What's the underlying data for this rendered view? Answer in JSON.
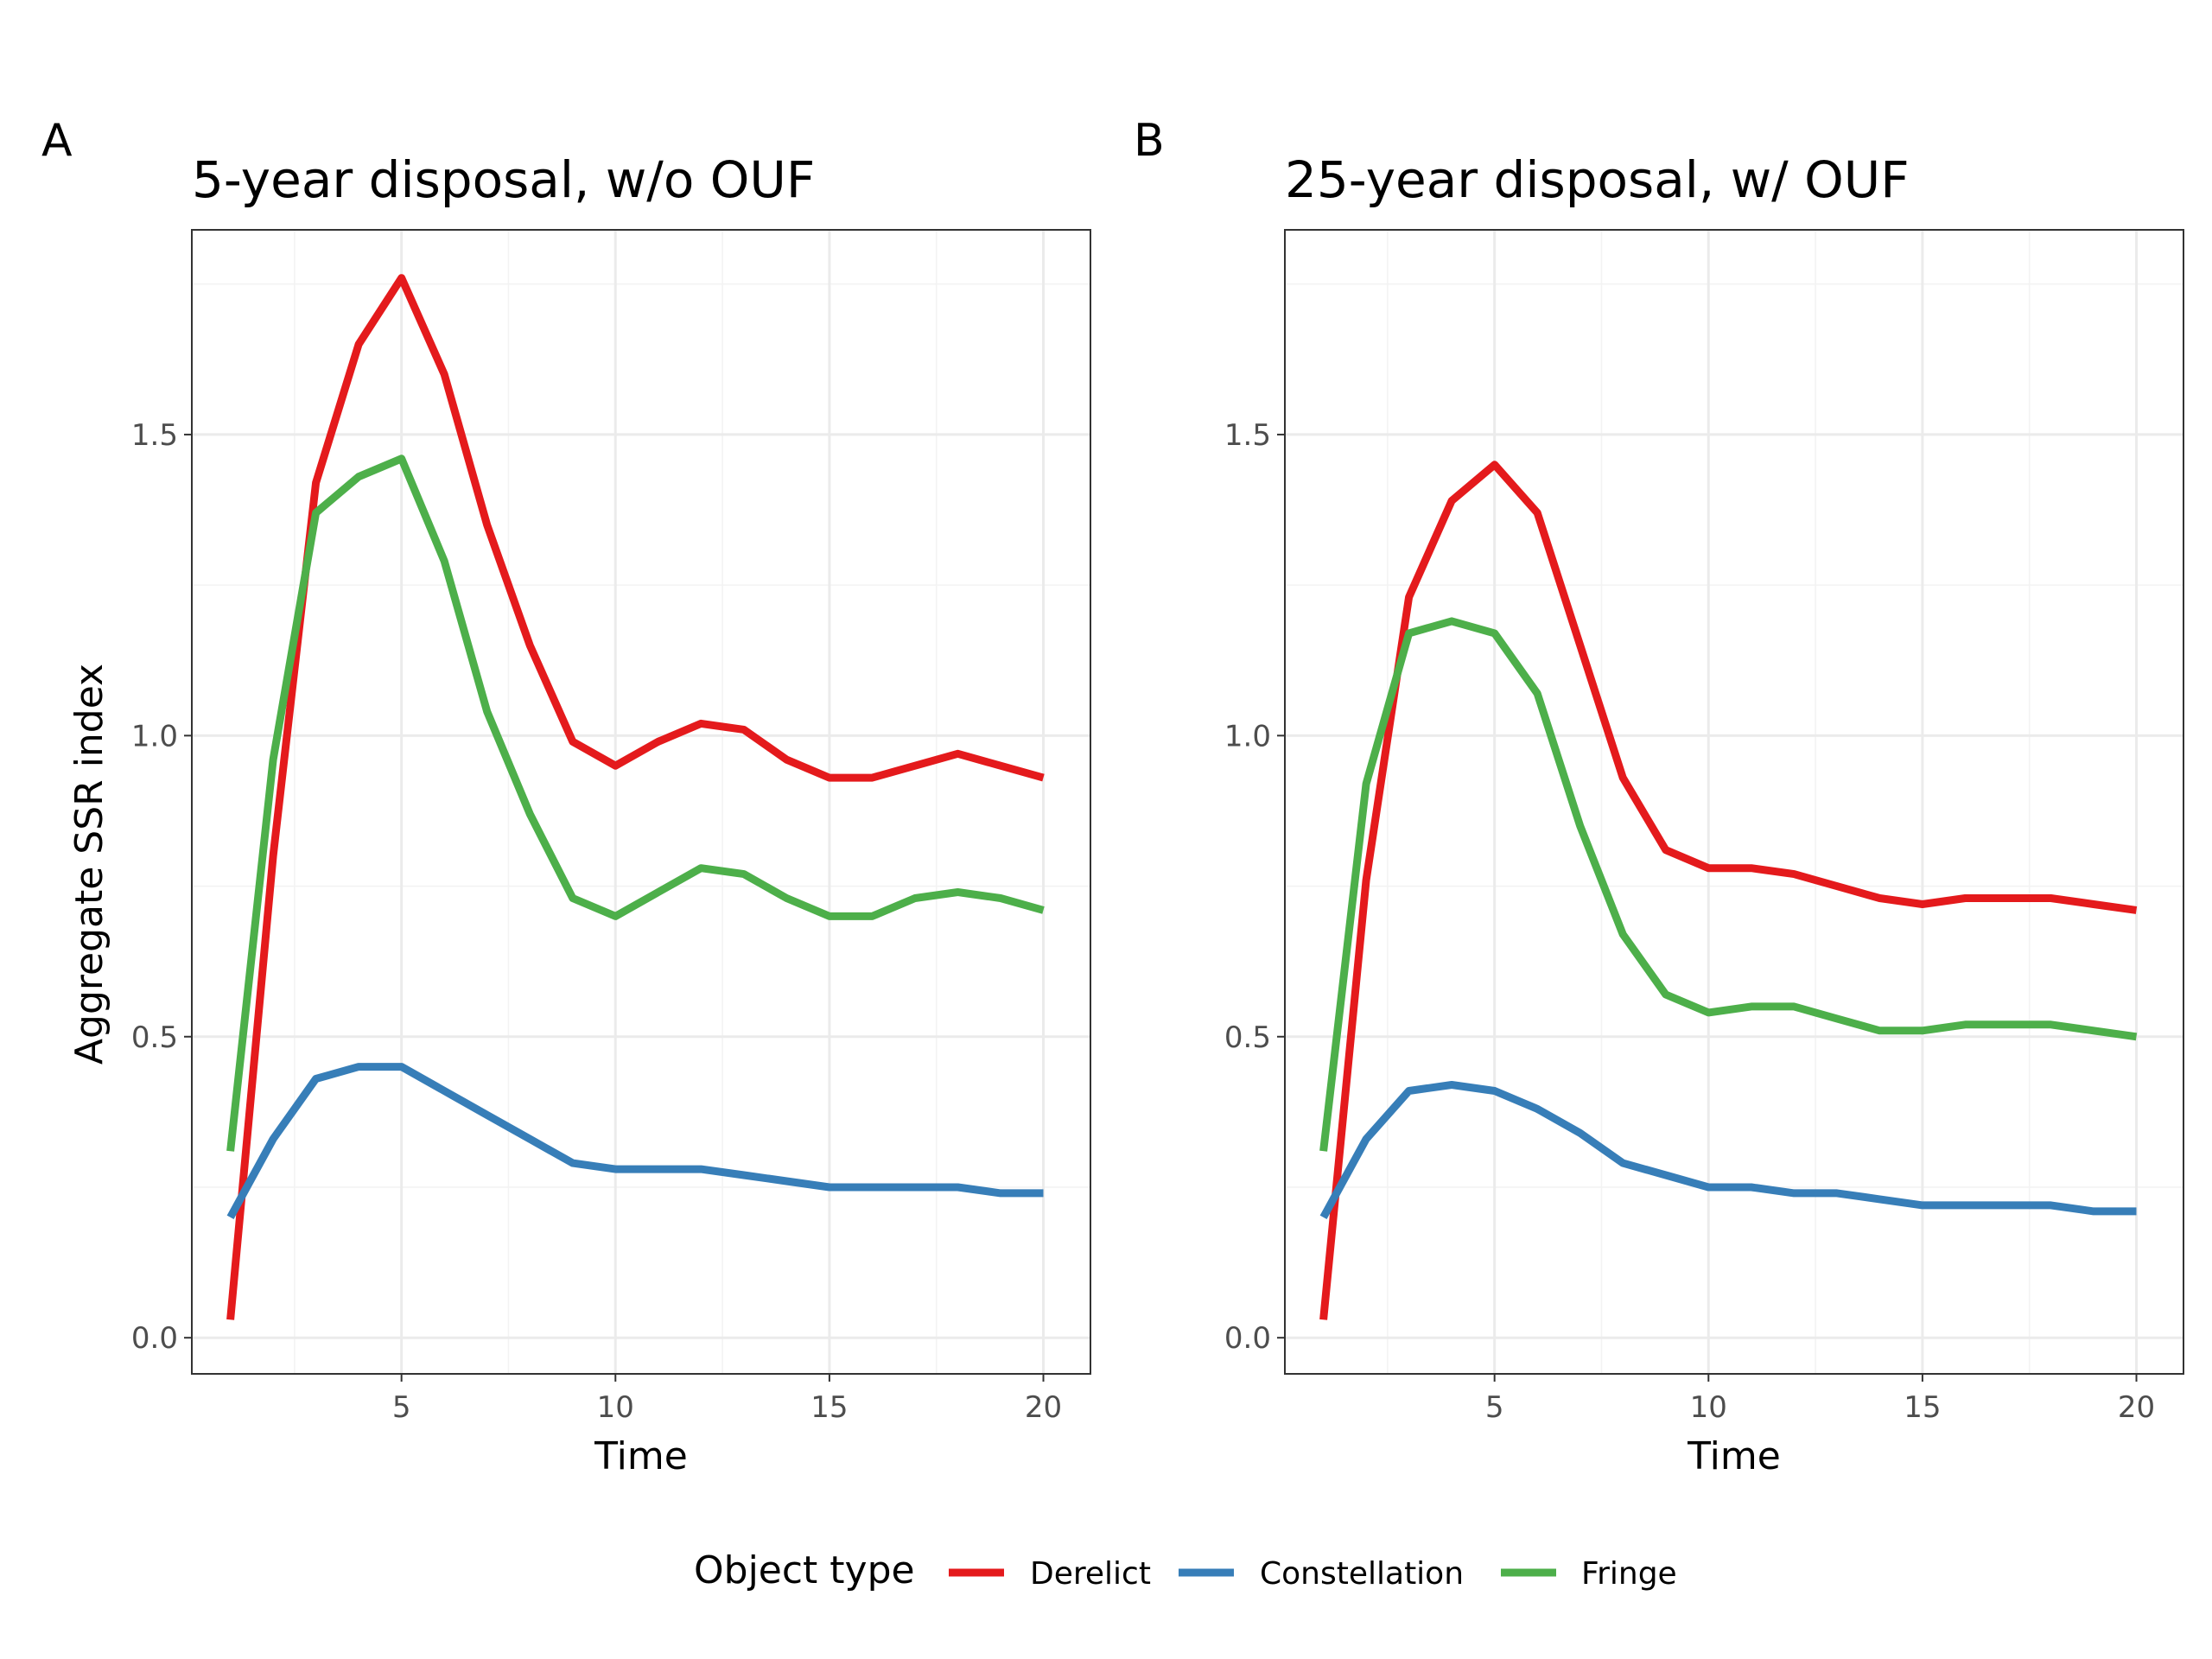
{
  "figure": {
    "y_axis_title": "Aggregate SSR index",
    "legend": {
      "title": "Object type",
      "placement": "bottom",
      "items": [
        {
          "label": "Derelict",
          "color": "#e41a1c"
        },
        {
          "label": "Constellation",
          "color": "#377eb8"
        },
        {
          "label": "Fringe",
          "color": "#4daf4a"
        }
      ]
    }
  },
  "chart_data": [
    {
      "type": "line",
      "tag": "A",
      "title": "5-year disposal, w/o OUF",
      "xlabel": "Time",
      "ylabel": "Aggregate SSR index",
      "xlim": [
        0.1,
        21.1
      ],
      "ylim": [
        -0.06,
        1.84
      ],
      "x_ticks": [
        5,
        10,
        15,
        20
      ],
      "y_ticks": [
        0.0,
        0.5,
        1.0,
        1.5
      ],
      "x_tick_labels": [
        "5",
        "10",
        "15",
        "20"
      ],
      "y_tick_labels": [
        "0.0",
        "0.5",
        "1.0",
        "1.5"
      ],
      "grid": true,
      "x": [
        1,
        2,
        3,
        4,
        5,
        6,
        7,
        8,
        9,
        10,
        11,
        12,
        13,
        14,
        15,
        16,
        17,
        18,
        19,
        20
      ],
      "series": [
        {
          "name": "Derelict",
          "color": "#e41a1c",
          "values": [
            0.03,
            0.8,
            1.42,
            1.65,
            1.76,
            1.6,
            1.35,
            1.15,
            0.99,
            0.95,
            0.99,
            1.02,
            1.01,
            0.96,
            0.93,
            0.93,
            0.95,
            0.97,
            0.95,
            0.93
          ]
        },
        {
          "name": "Constellation",
          "color": "#377eb8",
          "values": [
            0.2,
            0.33,
            0.43,
            0.45,
            0.45,
            0.41,
            0.37,
            0.33,
            0.29,
            0.28,
            0.28,
            0.28,
            0.27,
            0.26,
            0.25,
            0.25,
            0.25,
            0.25,
            0.24,
            0.24
          ]
        },
        {
          "name": "Fringe",
          "color": "#4daf4a",
          "values": [
            0.31,
            0.96,
            1.37,
            1.43,
            1.46,
            1.29,
            1.04,
            0.87,
            0.73,
            0.7,
            0.74,
            0.78,
            0.77,
            0.73,
            0.7,
            0.7,
            0.73,
            0.74,
            0.73,
            0.71
          ]
        }
      ]
    },
    {
      "type": "line",
      "tag": "B",
      "title": "25-year disposal, w/ OUF",
      "xlabel": "Time",
      "ylabel": "",
      "xlim": [
        0.1,
        21.1
      ],
      "ylim": [
        -0.06,
        1.84
      ],
      "x_ticks": [
        5,
        10,
        15,
        20
      ],
      "y_ticks": [
        0.0,
        0.5,
        1.0,
        1.5
      ],
      "x_tick_labels": [
        "5",
        "10",
        "15",
        "20"
      ],
      "y_tick_labels": [
        "0.0",
        "0.5",
        "1.0",
        "1.5"
      ],
      "grid": true,
      "x": [
        1,
        2,
        3,
        4,
        5,
        6,
        7,
        8,
        9,
        10,
        11,
        12,
        13,
        14,
        15,
        16,
        17,
        18,
        19,
        20
      ],
      "series": [
        {
          "name": "Derelict",
          "color": "#e41a1c",
          "values": [
            0.03,
            0.76,
            1.23,
            1.39,
            1.45,
            1.37,
            1.15,
            0.93,
            0.81,
            0.78,
            0.78,
            0.77,
            0.75,
            0.73,
            0.72,
            0.73,
            0.73,
            0.73,
            0.72,
            0.71
          ]
        },
        {
          "name": "Constellation",
          "color": "#377eb8",
          "values": [
            0.2,
            0.33,
            0.41,
            0.42,
            0.41,
            0.38,
            0.34,
            0.29,
            0.27,
            0.25,
            0.25,
            0.24,
            0.24,
            0.23,
            0.22,
            0.22,
            0.22,
            0.22,
            0.21,
            0.21
          ]
        },
        {
          "name": "Fringe",
          "color": "#4daf4a",
          "values": [
            0.31,
            0.92,
            1.17,
            1.19,
            1.17,
            1.07,
            0.85,
            0.67,
            0.57,
            0.54,
            0.55,
            0.55,
            0.53,
            0.51,
            0.51,
            0.52,
            0.52,
            0.52,
            0.51,
            0.5
          ]
        }
      ]
    }
  ]
}
